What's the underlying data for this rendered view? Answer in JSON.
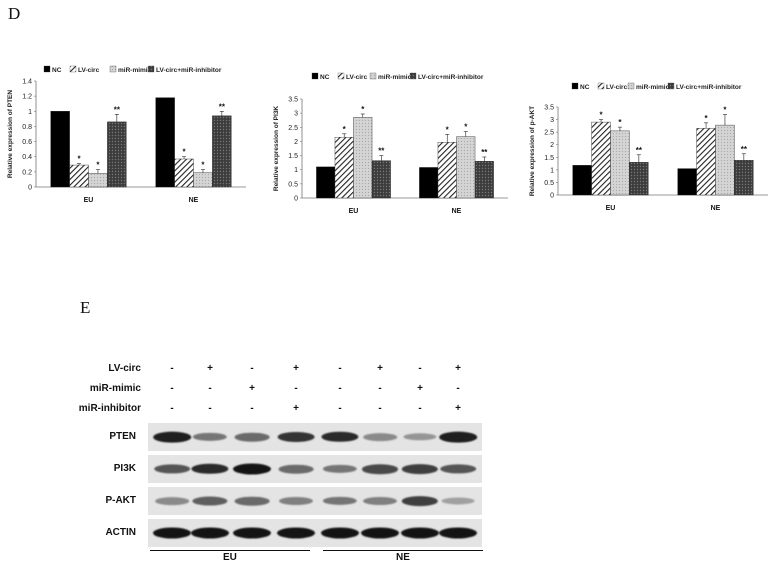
{
  "panels": {
    "d": "D",
    "e": "E"
  },
  "legend": [
    "NC",
    "LV-circ",
    "miR-mimic",
    "LV-circ+miR-inhibitor"
  ],
  "chart_data": [
    {
      "type": "bar",
      "ylabel": "Relative expression of PTEN",
      "categories": [
        "EU",
        "NE"
      ],
      "ylim": [
        0,
        1.4
      ],
      "yticks": [
        0,
        0.2,
        0.4,
        0.6,
        0.8,
        1,
        1.2,
        1.4
      ],
      "legend_position": "top",
      "series": [
        {
          "name": "NC",
          "values": [
            1.0,
            1.18
          ],
          "err": [
            0,
            0
          ],
          "sig": [
            "",
            ""
          ]
        },
        {
          "name": "LV-circ",
          "values": [
            0.29,
            0.37
          ],
          "err": [
            0.02,
            0.03
          ],
          "sig": [
            "*",
            "*"
          ]
        },
        {
          "name": "miR-mimic",
          "values": [
            0.18,
            0.19
          ],
          "err": [
            0.05,
            0.04
          ],
          "sig": [
            "*",
            "*"
          ]
        },
        {
          "name": "LV-circ+miR-inhibitor",
          "values": [
            0.86,
            0.94
          ],
          "err": [
            0.1,
            0.06
          ],
          "sig": [
            "**",
            "**"
          ]
        }
      ]
    },
    {
      "type": "bar",
      "ylabel": "Relative expression of PI3K",
      "categories": [
        "EU",
        "NE"
      ],
      "ylim": [
        0,
        3.5
      ],
      "yticks": [
        0,
        0.5,
        1,
        1.5,
        2,
        2.5,
        3,
        3.5
      ],
      "legend_position": "top",
      "series": [
        {
          "name": "NC",
          "values": [
            1.1,
            1.08
          ],
          "err": [
            0,
            0
          ],
          "sig": [
            "",
            ""
          ]
        },
        {
          "name": "LV-circ",
          "values": [
            2.15,
            1.97
          ],
          "err": [
            0.12,
            0.28
          ],
          "sig": [
            "*",
            "*"
          ]
        },
        {
          "name": "miR-mimic",
          "values": [
            2.85,
            2.17
          ],
          "err": [
            0.12,
            0.18
          ],
          "sig": [
            "*",
            "*"
          ]
        },
        {
          "name": "LV-circ+miR-inhibitor",
          "values": [
            1.32,
            1.3
          ],
          "err": [
            0.18,
            0.15
          ],
          "sig": [
            "**",
            "**"
          ]
        }
      ]
    },
    {
      "type": "bar",
      "ylabel": "Relative expression of p-AKT",
      "categories": [
        "EU",
        "NE"
      ],
      "ylim": [
        0,
        3.5
      ],
      "yticks": [
        0,
        0.5,
        1,
        1.5,
        2,
        2.5,
        3,
        3.5
      ],
      "legend_position": "top",
      "series": [
        {
          "name": "NC",
          "values": [
            1.18,
            1.05
          ],
          "err": [
            0,
            0
          ],
          "sig": [
            "",
            ""
          ]
        },
        {
          "name": "LV-circ",
          "values": [
            2.9,
            2.65
          ],
          "err": [
            0.1,
            0.22
          ],
          "sig": [
            "*",
            "*"
          ]
        },
        {
          "name": "miR-mimic",
          "values": [
            2.55,
            2.78
          ],
          "err": [
            0.15,
            0.42
          ],
          "sig": [
            "*",
            "*"
          ]
        },
        {
          "name": "LV-circ+miR-inhibitor",
          "values": [
            1.3,
            1.38
          ],
          "err": [
            0.3,
            0.26
          ],
          "sig": [
            "**",
            "**"
          ]
        }
      ]
    }
  ],
  "blot": {
    "treatments": [
      {
        "label": "LV-circ",
        "signs": [
          "-",
          "+",
          "-",
          "+",
          "-",
          "+",
          "-",
          "+"
        ]
      },
      {
        "label": "miR-mimic",
        "signs": [
          "-",
          "-",
          "+",
          "-",
          "-",
          "-",
          "+",
          "-"
        ]
      },
      {
        "label": "miR-inhibitor",
        "signs": [
          "-",
          "-",
          "-",
          "+",
          "-",
          "-",
          "-",
          "+"
        ]
      }
    ],
    "proteins": [
      {
        "label": "PTEN",
        "intensity": [
          0.95,
          0.55,
          0.6,
          0.85,
          0.9,
          0.45,
          0.4,
          0.95
        ]
      },
      {
        "label": "PI3K",
        "intensity": [
          0.7,
          0.9,
          1.0,
          0.6,
          0.55,
          0.75,
          0.8,
          0.7
        ]
      },
      {
        "label": "P-AKT",
        "intensity": [
          0.45,
          0.65,
          0.6,
          0.5,
          0.55,
          0.5,
          0.8,
          0.35
        ]
      },
      {
        "label": "ACTIN",
        "intensity": [
          1.0,
          1.0,
          1.0,
          1.0,
          1.0,
          1.0,
          1.0,
          1.0
        ]
      }
    ],
    "groups": [
      "EU",
      "NE"
    ]
  }
}
